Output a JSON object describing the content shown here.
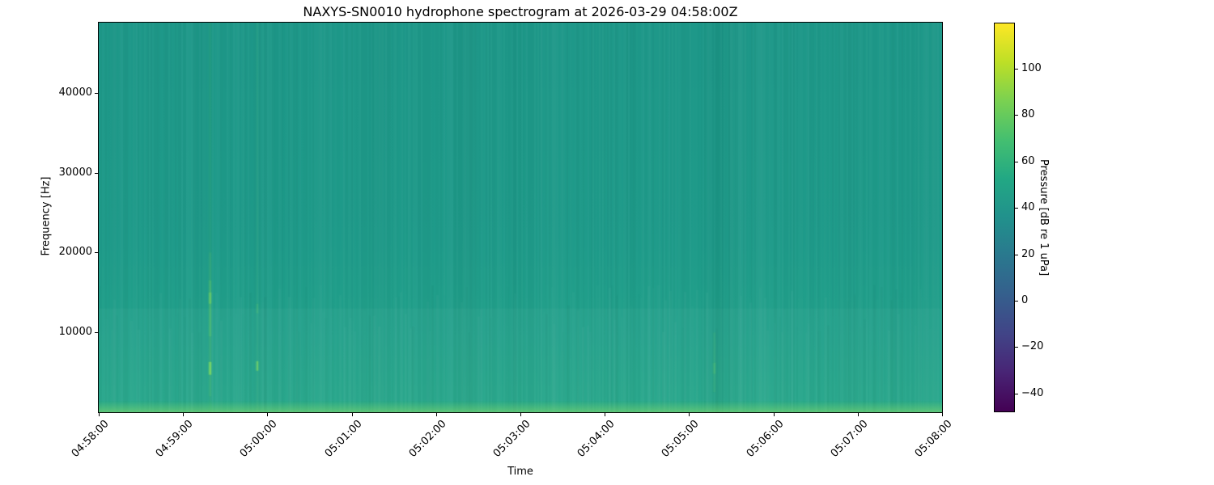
{
  "figure": {
    "title": "NAXYS-SN0010 hydrophone spectrogram at 2026-03-29 04:58:00Z"
  },
  "chart_data": {
    "type": "heatmap",
    "subtype": "spectrogram",
    "title": "NAXYS-SN0010 hydrophone spectrogram at 2026-03-29 04:58:00Z",
    "xlabel": "Time",
    "ylabel": "Frequency [Hz]",
    "x_tick_labels": [
      "04:58:00",
      "04:59:00",
      "05:00:00",
      "05:01:00",
      "05:02:00",
      "05:03:00",
      "05:04:00",
      "05:05:00",
      "05:06:00",
      "05:07:00",
      "05:08:00"
    ],
    "x_tick_rotation_deg": 45,
    "y_ticks": [
      {
        "value": 10000,
        "label": "10000"
      },
      {
        "value": 20000,
        "label": "20000"
      },
      {
        "value": 30000,
        "label": "30000"
      },
      {
        "value": 40000,
        "label": "40000"
      }
    ],
    "ylim": [
      0,
      48800
    ],
    "grid": false,
    "colorbar": {
      "label": "Pressure [dB re 1 uPa]",
      "vmin": -47.7,
      "vmax": 119.5,
      "colormap": "viridis",
      "ticks": [
        {
          "value": 100,
          "label": "100"
        },
        {
          "value": 80,
          "label": "80"
        },
        {
          "value": 60,
          "label": "60"
        },
        {
          "value": 40,
          "label": "40"
        },
        {
          "value": 20,
          "label": "20"
        },
        {
          "value": 0,
          "label": "0"
        },
        {
          "value": -20,
          "label": "−20"
        },
        {
          "value": -40,
          "label": "−40"
        }
      ],
      "stops_top_to_bottom": [
        "#fde725",
        "#bddf26",
        "#7ad151",
        "#44bf70",
        "#22a884",
        "#21918c",
        "#2a788e",
        "#355f8d",
        "#414487",
        "#482475",
        "#440154"
      ]
    },
    "background_level": {
      "typical_db": 52,
      "base_gradient": [
        {
          "pos": 0.0,
          "color": "#1e9889"
        },
        {
          "pos": 0.55,
          "color": "#1f9b8a"
        },
        {
          "pos": 0.8,
          "color": "#22a18b"
        },
        {
          "pos": 1.0,
          "color": "#25a78a"
        }
      ]
    },
    "bands": [
      {
        "f0": 1400,
        "f1": 13000,
        "color": "#ffffff",
        "alpha": 0.03,
        "gradient": false,
        "description": "slightly elevated broadband noise below 13 kHz"
      },
      {
        "f0": 0,
        "f1": 1500,
        "color": "#8ee06a",
        "alpha": 0.55,
        "gradient": true,
        "description": "bright low-frequency noise band (~75 dB)"
      }
    ],
    "events": [
      {
        "time": "04:59:19",
        "x_frac": 0.132,
        "description": "strong broadband transient, peak near 5.5 kHz and 14 kHz",
        "segments": [
          {
            "f0": 0,
            "f1": 48800,
            "a": 0.06
          },
          {
            "f0": 2000,
            "f1": 20000,
            "a": 0.1
          },
          {
            "f0": 9500,
            "f1": 16500,
            "a": 0.18
          },
          {
            "f0": 13600,
            "f1": 15000,
            "a": 0.4
          },
          {
            "f0": 4700,
            "f1": 6300,
            "a": 0.7
          }
        ]
      },
      {
        "time": "04:59:53",
        "x_frac": 0.188,
        "description": "faint transient with bright spot near 5.8 kHz",
        "segments": [
          {
            "f0": 0,
            "f1": 48800,
            "a": 0.04
          },
          {
            "f0": 5200,
            "f1": 6400,
            "a": 0.5
          },
          {
            "f0": 12400,
            "f1": 13600,
            "a": 0.12
          }
        ]
      },
      {
        "time": "05:05:17",
        "x_frac": 0.73,
        "description": "very faint transient near 5 kHz",
        "segments": [
          {
            "f0": 2500,
            "f1": 10000,
            "a": 0.08
          },
          {
            "f0": 4800,
            "f1": 6200,
            "a": 0.15
          }
        ]
      }
    ],
    "event_color": "#90e45c",
    "noise_seed": 7
  }
}
